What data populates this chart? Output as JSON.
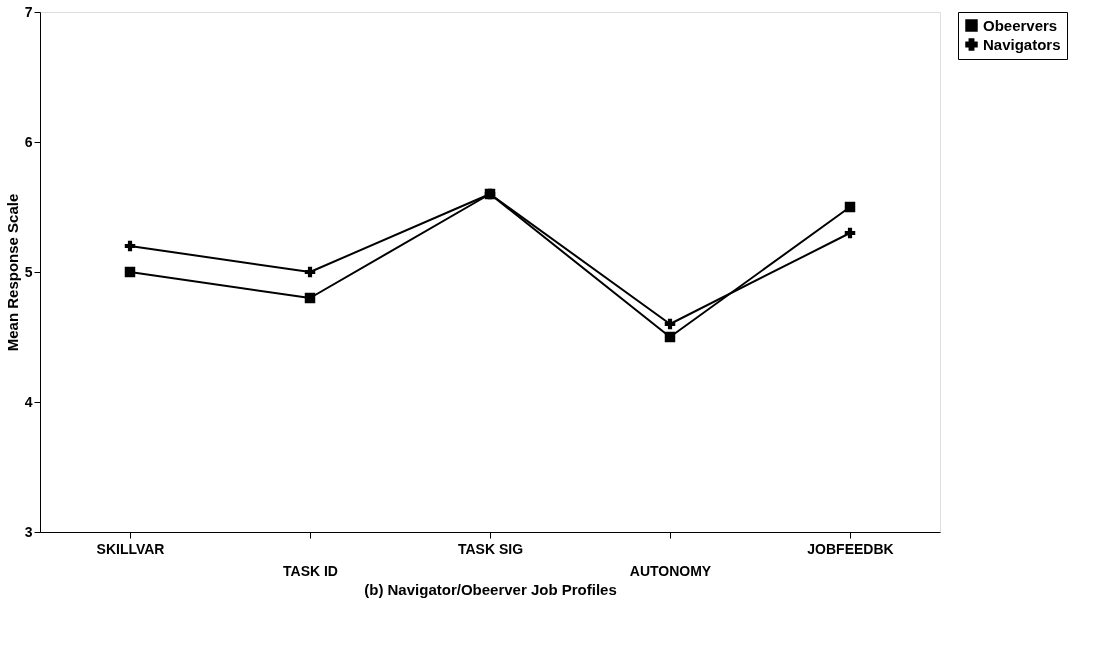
{
  "chart_data": {
    "type": "line",
    "xlabel": "(b) Navigator/Obeerver Job Profiles",
    "ylabel": "Mean Response Scale",
    "categories": [
      "SKILLVAR",
      "TASK ID",
      "TASK SIG",
      "AUTONOMY",
      "JOBFEEDBK"
    ],
    "series": [
      {
        "name": "Obeervers",
        "color": "#000000",
        "marker": "square",
        "values": [
          5.0,
          4.8,
          5.6,
          4.5,
          5.5
        ]
      },
      {
        "name": "Navigators",
        "color": "#000000",
        "marker": "cross",
        "values": [
          5.2,
          5.0,
          5.6,
          4.6,
          5.3
        ]
      }
    ],
    "ylim": [
      3,
      7
    ],
    "yticks": [
      3,
      4,
      5,
      6,
      7
    ],
    "grid": false,
    "legend": "top right",
    "line_style": "solid"
  }
}
